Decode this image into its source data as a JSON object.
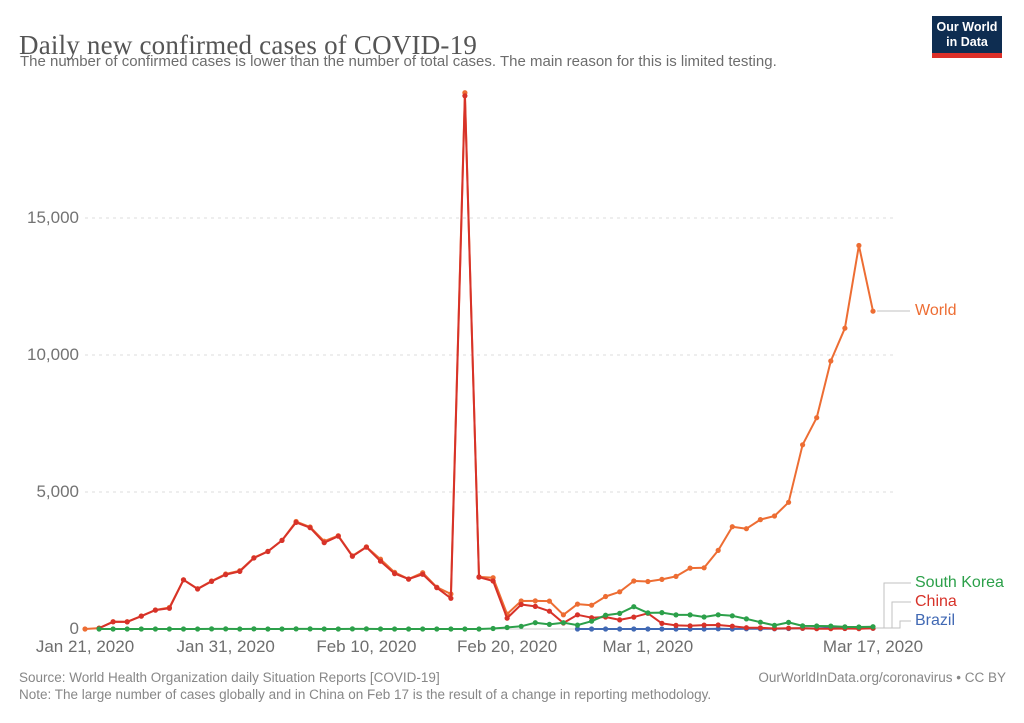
{
  "header": {
    "title": "Daily new confirmed cases of COVID-19",
    "subtitle": "The number of confirmed cases is lower than the number of total cases. The main reason for this is limited testing."
  },
  "logo": {
    "line1": "Our World",
    "line2": "in Data",
    "bg_color": "#0e2d51",
    "bar_color": "#dc2f28"
  },
  "footer": {
    "source": "Source: World Health Organization daily Situation Reports [COVID-19]",
    "link": "OurWorldInData.org/coronavirus • CC BY",
    "note": "Note: The large number of cases globally and in China on Feb 17 is the result of a change in reporting methodology."
  },
  "chart_data": {
    "type": "line",
    "title": "Daily new confirmed cases of COVID-19",
    "subtitle": "The number of confirmed cases is lower than the number of total cases. The main reason for this is limited testing.",
    "date_range": [
      "Jan 21, 2020",
      "Mar 17, 2020"
    ],
    "x_axis": {
      "tick_days": [
        0,
        10,
        20,
        30,
        40,
        56
      ],
      "tick_labels": [
        "Jan 21, 2020",
        "Jan 31, 2020",
        "Feb 10, 2020",
        "Feb 20, 2020",
        "Mar 1, 2020",
        "Mar 17, 2020"
      ]
    },
    "y_axis": {
      "ticks": [
        0,
        5000,
        10000,
        15000
      ],
      "tick_labels": [
        "0",
        "5,000",
        "10,000",
        "15,000"
      ],
      "ylim": [
        0,
        19600
      ],
      "gridlines": "dashed"
    },
    "annotation_peak": {
      "day_label": "Feb 17",
      "world_value": 19572,
      "china_value": 19461
    },
    "series": [
      {
        "name": "World",
        "color": "#ed6d33",
        "start_day": 0,
        "values": [
          0,
          32,
          267,
          265,
          474,
          694,
          784,
          1795,
          1472,
          1753,
          2008,
          2127,
          2604,
          2834,
          3239,
          3924,
          3722,
          3205,
          3405,
          2672,
          2996,
          2549,
          2068,
          1826,
          2056,
          1527,
          1277,
          19572,
          1903,
          1872,
          544,
          1021,
          1025,
          1017,
          520,
          908,
          870,
          1185,
          1358,
          1751,
          1734,
          1811,
          1921,
          2222,
          2233,
          2868,
          3735,
          3659,
          3991,
          4125,
          4624,
          6722,
          7710,
          9781,
          10978,
          13998,
          11597
        ]
      },
      {
        "name": "China",
        "color": "#d73229",
        "start_day": 1,
        "values": [
          31,
          262,
          259,
          467,
          688,
          756,
          1796,
          1460,
          1739,
          1984,
          2101,
          2590,
          2827,
          3233,
          3892,
          3697,
          3151,
          3387,
          2653,
          2984,
          2473,
          2022,
          1820,
          1998,
          1506,
          1120,
          19461,
          1893,
          1752,
          395,
          894,
          823,
          650,
          220,
          518,
          411,
          439,
          331,
          433,
          574,
          206,
          130,
          118,
          143,
          146,
          102,
          46,
          45,
          20,
          31,
          26,
          10,
          12,
          18,
          12,
          25
        ]
      },
      {
        "name": "South Korea",
        "color": "#2ca04a",
        "start_day": 1,
        "values": [
          0,
          1,
          1,
          0,
          1,
          1,
          0,
          0,
          2,
          5,
          1,
          3,
          0,
          1,
          2,
          4,
          1,
          0,
          2,
          2,
          1,
          0,
          1,
          1,
          0,
          1,
          1,
          1,
          20,
          53,
          100,
          229,
          169,
          231,
          144,
          284,
          505,
          571,
          813,
          586,
          599,
          516,
          516,
          438,
          518,
          483,
          367,
          248,
          131,
          242,
          114,
          110,
          107,
          76,
          74,
          84
        ]
      },
      {
        "name": "Brazil",
        "color": "#4169b4",
        "start_day": 35,
        "values": [
          0,
          1,
          0,
          0,
          1,
          0,
          0,
          0,
          1,
          1,
          9,
          0,
          6,
          6,
          9,
          18,
          25,
          21,
          46,
          23,
          34,
          33
        ]
      }
    ],
    "legend": [
      "World",
      "South Korea",
      "China",
      "Brazil"
    ]
  }
}
